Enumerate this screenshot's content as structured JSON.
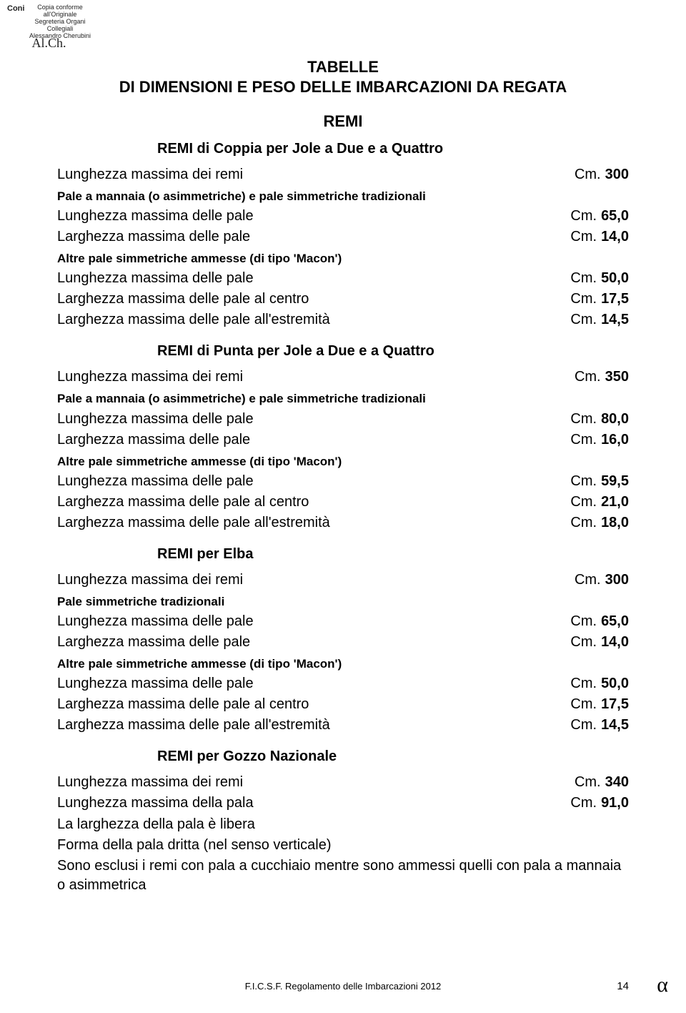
{
  "stamp": {
    "coni": "Coni",
    "line1": "Copia conforme",
    "line2": "all'Originale",
    "line3": "Segreteria Organi",
    "line4": "Collegiali",
    "line5": "Alessandro Cherubini"
  },
  "title": {
    "line1": "TABELLE",
    "line2": "DI DIMENSIONI E PESO DELLE IMBARCAZIONI DA REGATA",
    "subtitle": "REMI"
  },
  "value_prefix": "Cm.",
  "sections": [
    {
      "heading": "REMI di Coppia per Jole a Due e a Quattro",
      "items": [
        {
          "type": "row",
          "label": "Lunghezza massima dei remi",
          "value": "300"
        },
        {
          "type": "subnote",
          "text": "Pale a mannaia (o asimmetriche) e pale simmetriche tradizionali"
        },
        {
          "type": "row",
          "label": "Lunghezza massima delle pale",
          "value": "65,0"
        },
        {
          "type": "row",
          "label": "Larghezza massima delle pale",
          "value": "14,0"
        },
        {
          "type": "subnote",
          "text": "Altre pale simmetriche ammesse (di tipo 'Macon')"
        },
        {
          "type": "row",
          "label": "Lunghezza massima delle pale",
          "value": "50,0"
        },
        {
          "type": "row",
          "label": "Larghezza massima delle pale al centro",
          "value": "17,5"
        },
        {
          "type": "row",
          "label": "Larghezza massima delle pale all'estremità",
          "value": "14,5"
        }
      ]
    },
    {
      "heading": "REMI di Punta per Jole a Due e a Quattro",
      "items": [
        {
          "type": "row",
          "label": "Lunghezza massima dei remi",
          "value": "350"
        },
        {
          "type": "subnote",
          "text": "Pale a mannaia (o asimmetriche) e pale simmetriche tradizionali"
        },
        {
          "type": "row",
          "label": "Lunghezza massima delle pale",
          "value": "80,0"
        },
        {
          "type": "row",
          "label": "Larghezza massima delle pale",
          "value": "16,0"
        },
        {
          "type": "subnote",
          "text": "Altre pale simmetriche ammesse (di tipo 'Macon')"
        },
        {
          "type": "row",
          "label": "Lunghezza massima delle pale",
          "value": "59,5"
        },
        {
          "type": "row",
          "label": "Larghezza massima delle pale al centro",
          "value": "21,0"
        },
        {
          "type": "row",
          "label": "Larghezza massima delle pale all'estremità",
          "value": "18,0"
        }
      ]
    },
    {
      "heading": "REMI per Elba",
      "items": [
        {
          "type": "row",
          "label": "Lunghezza massima dei remi",
          "value": "300"
        },
        {
          "type": "subnote",
          "text": "Pale simmetriche tradizionali"
        },
        {
          "type": "row",
          "label": "Lunghezza massima delle pale",
          "value": "65,0"
        },
        {
          "type": "row",
          "label": "Larghezza massima delle pale",
          "value": "14,0"
        },
        {
          "type": "subnote",
          "text": "Altre pale simmetriche ammesse (di tipo 'Macon')"
        },
        {
          "type": "row",
          "label": "Lunghezza massima delle pale",
          "value": "50,0"
        },
        {
          "type": "row",
          "label": "Larghezza massima delle pale al centro",
          "value": "17,5"
        },
        {
          "type": "row",
          "label": "Larghezza massima delle pale all'estremità",
          "value": "14,5"
        }
      ]
    },
    {
      "heading": "REMI per Gozzo Nazionale",
      "items": [
        {
          "type": "row",
          "label": "Lunghezza massima dei remi",
          "value": "340"
        },
        {
          "type": "row",
          "label": "Lunghezza massima della pala",
          "value": "91,0"
        },
        {
          "type": "plain",
          "text": "La larghezza della pala è libera"
        },
        {
          "type": "plain",
          "text": "Forma della pala dritta (nel senso verticale)"
        },
        {
          "type": "plain",
          "text": "Sono esclusi i remi con pala a cucchiaio mentre sono ammessi quelli con pala a mannaia o asimmetrica"
        }
      ]
    }
  ],
  "footer": {
    "text": "F.I.C.S.F. Regolamento delle Imbarcazioni  2012",
    "page": "14"
  }
}
